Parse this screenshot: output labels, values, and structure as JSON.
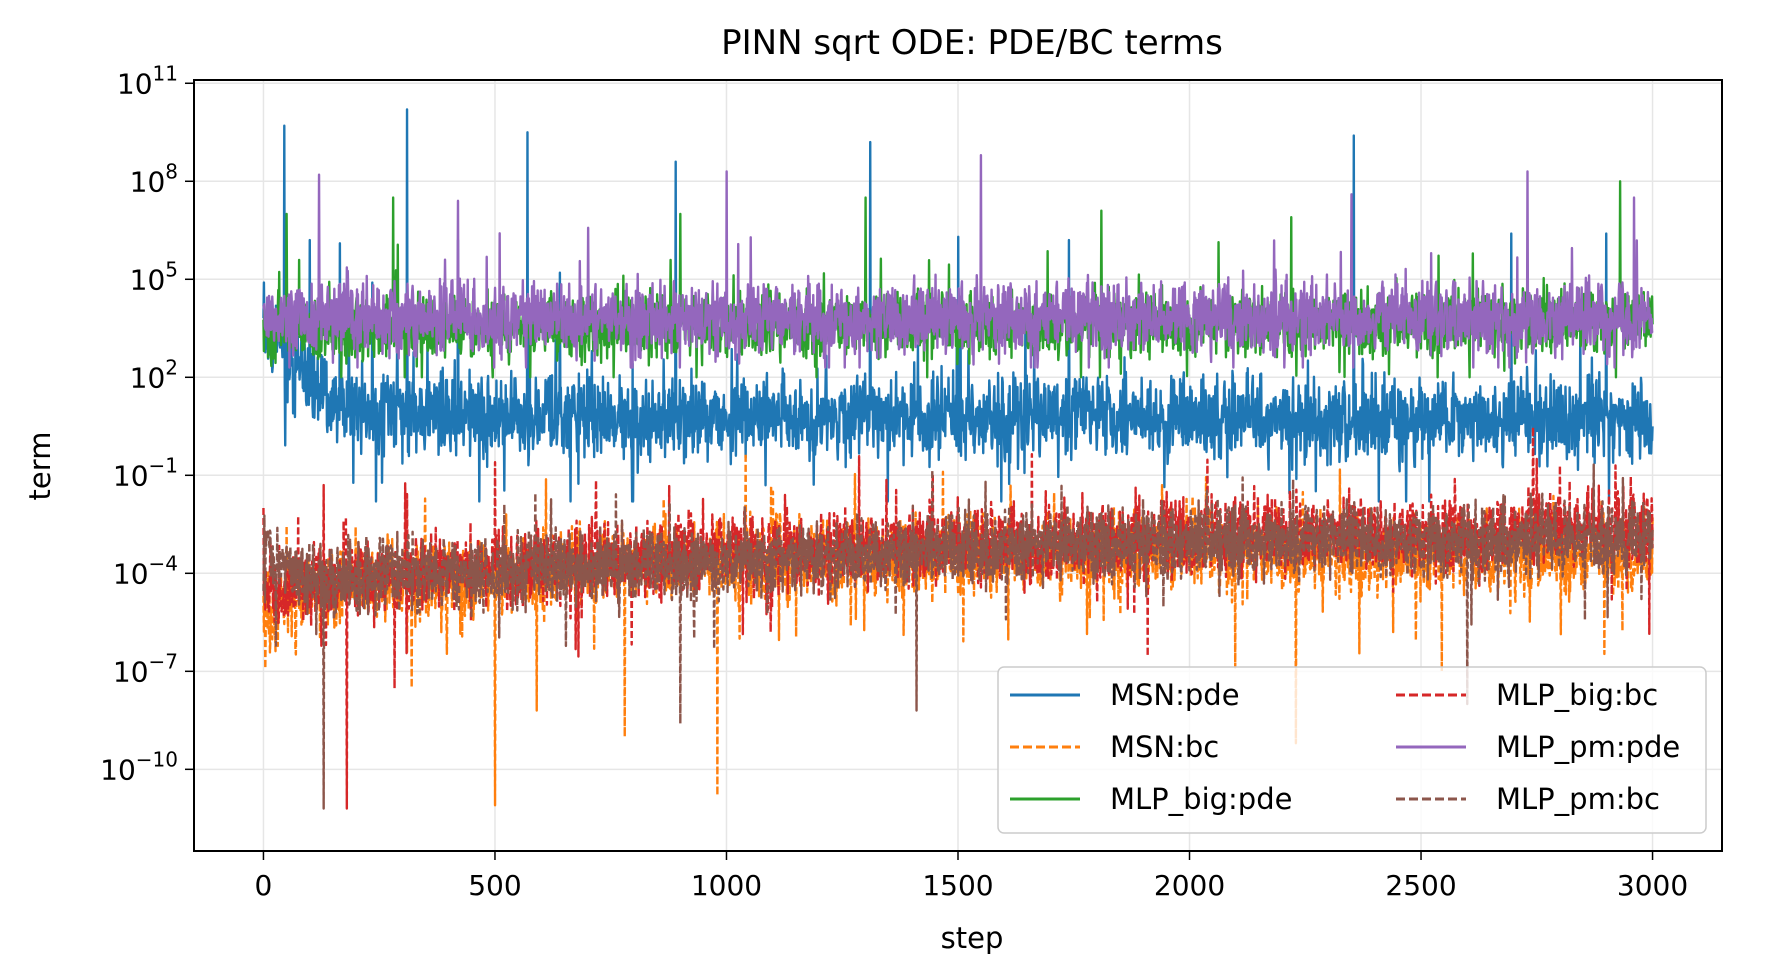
{
  "chart_data": {
    "type": "line",
    "title": "PINN sqrt ODE: PDE/BC terms",
    "xlabel": "step",
    "ylabel": "term",
    "xlim": [
      -150,
      3150
    ],
    "yscale": "log",
    "ylim_log10": [
      -12.5,
      11.1
    ],
    "grid": true,
    "legend_position": "lower-right",
    "legend_columns": 2,
    "x_ticks": [
      0,
      500,
      1000,
      1500,
      2000,
      2500,
      3000
    ],
    "x_tick_labels": [
      "0",
      "500",
      "1000",
      "1500",
      "2000",
      "2500",
      "3000"
    ],
    "y_ticks_log10": [
      11,
      8,
      5,
      2,
      -1,
      -4,
      -7,
      -10
    ],
    "y_tick_labels": [
      {
        "base": "10",
        "exp": "11"
      },
      {
        "base": "10",
        "exp": "8"
      },
      {
        "base": "10",
        "exp": "5"
      },
      {
        "base": "10",
        "exp": "2"
      },
      {
        "base": "10",
        "exp": "−1"
      },
      {
        "base": "10",
        "exp": "−4"
      },
      {
        "base": "10",
        "exp": "−7"
      },
      {
        "base": "10",
        "exp": "−10"
      }
    ],
    "series": [
      {
        "name": "MSN:pde",
        "color": "#1f77b4",
        "style": "solid",
        "x_range": [
          0,
          3000
        ],
        "num_points": 3000,
        "log10_center": [
          [
            0,
            3.6
          ],
          [
            60,
            2.6
          ],
          [
            150,
            1.2
          ],
          [
            400,
            0.8
          ],
          [
            1000,
            0.8
          ],
          [
            2000,
            0.8
          ],
          [
            3000,
            0.6
          ]
        ],
        "log10_spread": 1.3,
        "log10_min": -1.8,
        "spikes": [
          [
            1,
            4.9
          ],
          [
            45,
            9.7
          ],
          [
            100,
            6.2
          ],
          [
            165,
            6.1
          ],
          [
            235,
            4.9
          ],
          [
            310,
            10.2
          ],
          [
            420,
            6.2
          ],
          [
            570,
            9.5
          ],
          [
            640,
            5.2
          ],
          [
            890,
            8.6
          ],
          [
            1310,
            9.2
          ],
          [
            1500,
            6.3
          ],
          [
            1740,
            6.2
          ],
          [
            2355,
            9.4
          ],
          [
            2695,
            6.4
          ],
          [
            2900,
            6.4
          ],
          [
            3000,
            0.5
          ]
        ]
      },
      {
        "name": "MSN:bc",
        "color": "#ff7f0e",
        "style": "dashed",
        "x_range": [
          0,
          3000
        ],
        "num_points": 3000,
        "log10_center": [
          [
            0,
            -5.5
          ],
          [
            100,
            -4.4
          ],
          [
            1000,
            -3.6
          ],
          [
            2000,
            -3.3
          ],
          [
            3000,
            -3.6
          ]
        ],
        "log10_spread": 1.2,
        "log10_min": -11.5,
        "spikes": [
          [
            500,
            -11.1
          ],
          [
            980,
            -10.8
          ],
          [
            780,
            -9.0
          ],
          [
            590,
            -8.2
          ],
          [
            320,
            -7.5
          ],
          [
            1100,
            -1.5
          ],
          [
            2230,
            -9.2
          ],
          [
            2545,
            -7.0
          ]
        ]
      },
      {
        "name": "MLP_big:pde",
        "color": "#2ca02c",
        "style": "solid",
        "x_range": [
          0,
          3000
        ],
        "num_points": 3000,
        "log10_center": [
          [
            0,
            3.5
          ],
          [
            3000,
            3.7
          ]
        ],
        "log10_spread": 1.0,
        "log10_min": 2.0,
        "spikes": [
          [
            50,
            7.0
          ],
          [
            280,
            7.5
          ],
          [
            900,
            7.0
          ],
          [
            1300,
            7.5
          ],
          [
            1810,
            7.1
          ],
          [
            2220,
            6.9
          ],
          [
            2930,
            8.0
          ]
        ]
      },
      {
        "name": "MLP_big:bc",
        "color": "#d62728",
        "style": "dashed",
        "x_range": [
          0,
          3000
        ],
        "num_points": 3000,
        "log10_center": [
          [
            0,
            -4.4
          ],
          [
            1000,
            -3.4
          ],
          [
            2000,
            -2.9
          ],
          [
            3000,
            -2.6
          ]
        ],
        "log10_spread": 1.2,
        "log10_min": -11.3,
        "spikes": [
          [
            0,
            -2.0
          ],
          [
            130,
            -1.3
          ],
          [
            180,
            -11.2
          ],
          [
            500,
            -0.6
          ],
          [
            2750,
            -0.5
          ],
          [
            2800,
            -0.7
          ],
          [
            2920,
            -0.7
          ]
        ]
      },
      {
        "name": "MLP_pm:pde",
        "color": "#9467bd",
        "style": "solid",
        "x_range": [
          0,
          3000
        ],
        "num_points": 3000,
        "log10_center": [
          [
            0,
            3.8
          ],
          [
            3000,
            3.8
          ]
        ],
        "log10_spread": 1.1,
        "log10_min": 2.3,
        "spikes": [
          [
            120,
            8.2
          ],
          [
            420,
            7.4
          ],
          [
            1000,
            8.3
          ],
          [
            1550,
            8.8
          ],
          [
            2350,
            7.6
          ],
          [
            2730,
            8.3
          ],
          [
            2960,
            7.5
          ]
        ]
      },
      {
        "name": "MLP_pm:bc",
        "color": "#8c564b",
        "style": "dashed",
        "x_range": [
          0,
          3000
        ],
        "num_points": 3000,
        "log10_center": [
          [
            0,
            -3.2
          ],
          [
            100,
            -4.2
          ],
          [
            1000,
            -3.6
          ],
          [
            2000,
            -3.0
          ],
          [
            3000,
            -3.0
          ]
        ],
        "log10_spread": 1.1,
        "log10_min": -11.3,
        "spikes": [
          [
            130,
            -11.2
          ],
          [
            900,
            -8.6
          ],
          [
            1410,
            -8.2
          ],
          [
            2600,
            -8.0
          ],
          [
            1560,
            -1.2
          ]
        ]
      }
    ]
  }
}
